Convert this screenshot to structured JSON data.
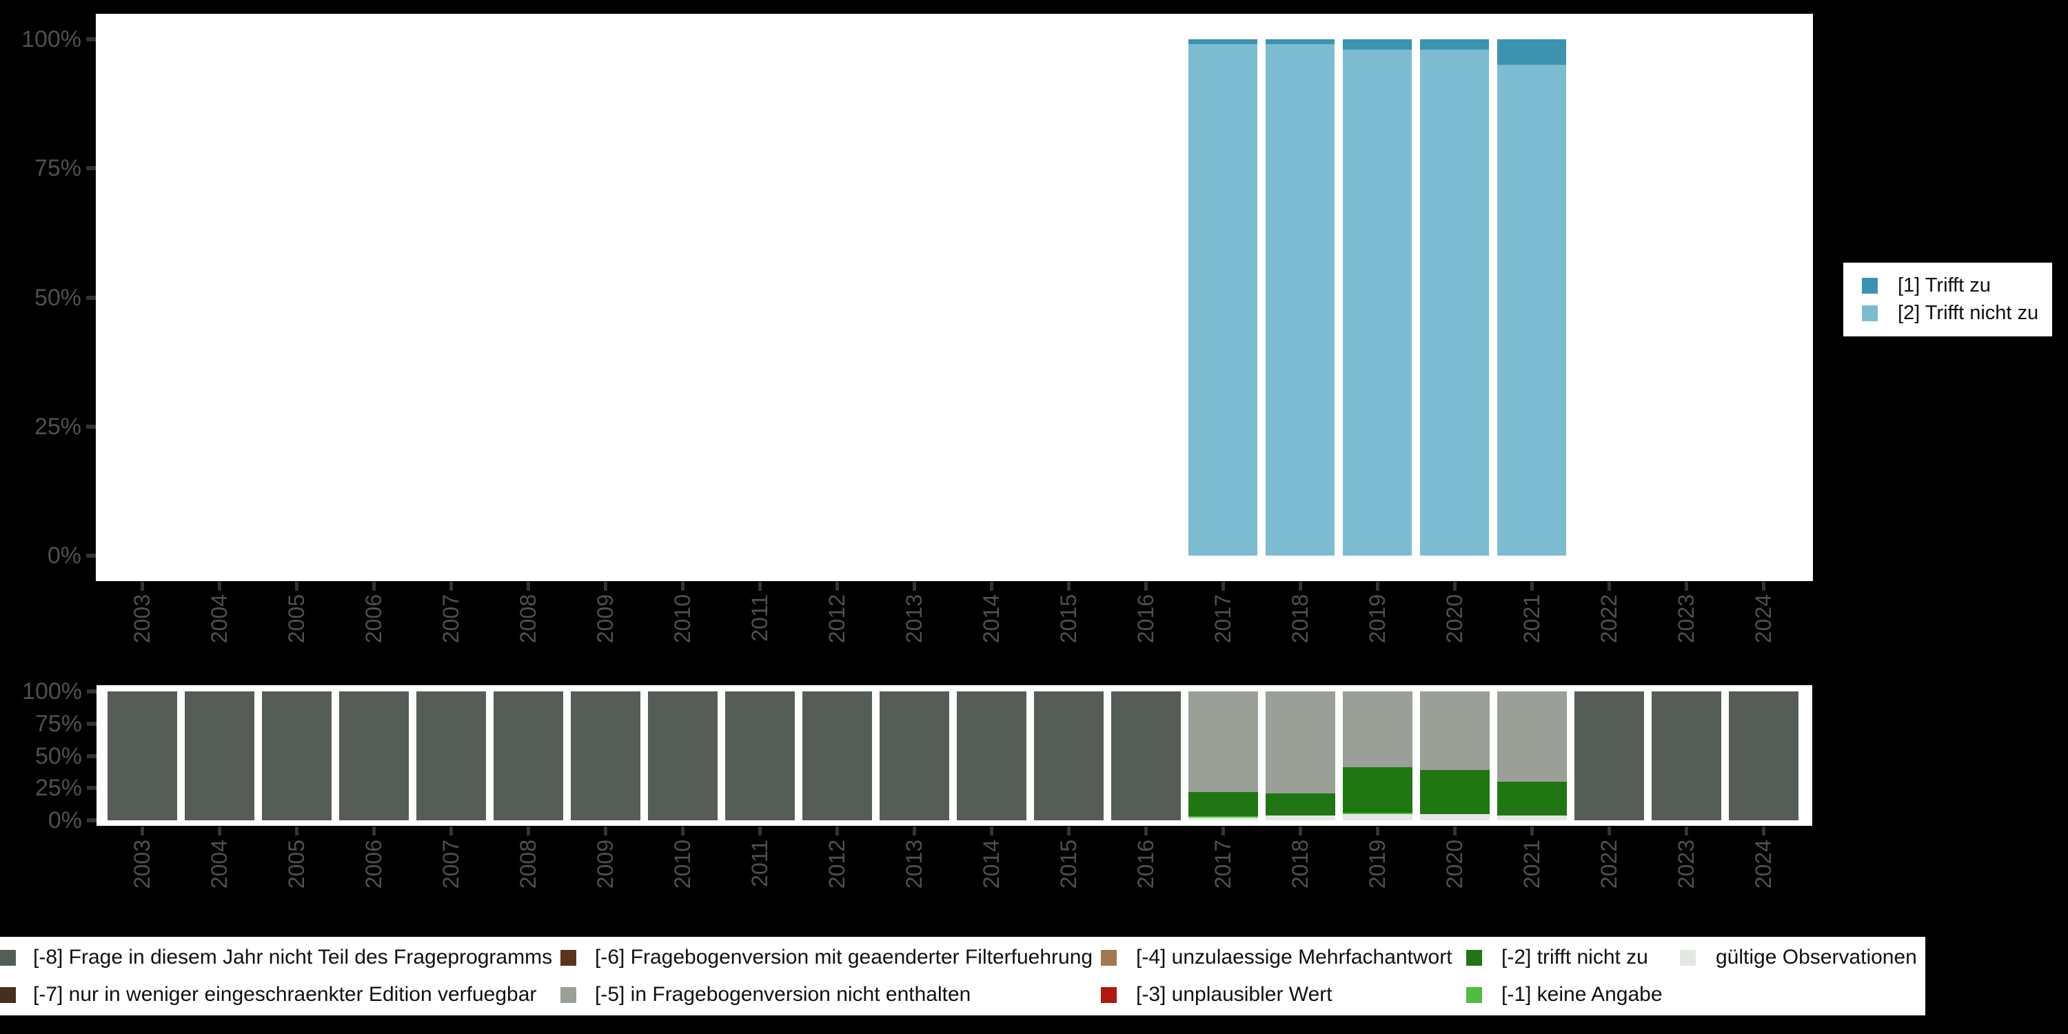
{
  "figure": {
    "background": "#000000",
    "panel_background": "#ffffff",
    "axis_text_color": "#4f4f4f",
    "tick_color": "#333333"
  },
  "top_legend": {
    "items": [
      {
        "label": "[1] Trifft zu",
        "color": "#3b93af"
      },
      {
        "label": "[2] Trifft nicht zu",
        "color": "#7dbcd0"
      }
    ]
  },
  "bottom_legend": {
    "rows": [
      [
        {
          "label": "[-8] Frage in diesem Jahr nicht Teil des Frageprogramms",
          "color": "#565d56"
        },
        {
          "label": "[-6] Fragebogenversion mit geaenderter Filterfuehrung",
          "color": "#5a351b"
        },
        {
          "label": "[-4] unzulaessige Mehrfachantwort",
          "color": "#a1794f"
        },
        {
          "label": "[-2] trifft nicht zu",
          "color": "#217614"
        },
        {
          "label": "gültige Observationen",
          "color": "#e4e8e2"
        }
      ],
      [
        {
          "label": "[-7] nur in weniger eingeschraenkter Edition verfuegbar",
          "color": "#452f1d"
        },
        {
          "label": "[-5] in Fragebogenversion nicht enthalten",
          "color": "#9a9f97"
        },
        {
          "label": "[-3] unplausibler Wert",
          "color": "#b2180f"
        },
        {
          "label": "[-1] keine Angabe",
          "color": "#52ba43"
        }
      ]
    ]
  },
  "chart_data": [
    {
      "id": "answers-by-year",
      "type": "bar",
      "stacked": true,
      "unit": "percent",
      "title": "",
      "xlabel": "",
      "ylabel": "",
      "ylim": [
        0,
        100
      ],
      "grid": false,
      "legend_position": "right",
      "y_ticks": [
        "100%",
        "75%",
        "50%",
        "25%",
        "0%"
      ],
      "categories": [
        "2003",
        "2004",
        "2005",
        "2006",
        "2007",
        "2008",
        "2009",
        "2010",
        "2011",
        "2012",
        "2013",
        "2014",
        "2015",
        "2016",
        "2017",
        "2018",
        "2019",
        "2020",
        "2021",
        "2022",
        "2023",
        "2024"
      ],
      "series": [
        {
          "name": "[1] Trifft zu",
          "color": "#3b93af",
          "values": [
            0,
            0,
            0,
            0,
            0,
            0,
            0,
            0,
            0,
            0,
            0,
            0,
            0,
            0,
            1,
            1,
            2,
            2,
            5,
            0,
            0,
            0
          ]
        },
        {
          "name": "[2] Trifft nicht zu",
          "color": "#7dbcd0",
          "values": [
            0,
            0,
            0,
            0,
            0,
            0,
            0,
            0,
            0,
            0,
            0,
            0,
            0,
            0,
            99,
            99,
            98,
            98,
            95,
            0,
            0,
            0
          ]
        }
      ]
    },
    {
      "id": "missings-by-year",
      "type": "bar",
      "stacked": true,
      "unit": "percent",
      "title": "",
      "xlabel": "",
      "ylabel": "",
      "ylim": [
        0,
        100
      ],
      "grid": false,
      "legend_position": "bottom",
      "y_ticks": [
        "100%",
        "75%",
        "50%",
        "25%",
        "0%"
      ],
      "categories": [
        "2003",
        "2004",
        "2005",
        "2006",
        "2007",
        "2008",
        "2009",
        "2010",
        "2011",
        "2012",
        "2013",
        "2014",
        "2015",
        "2016",
        "2017",
        "2018",
        "2019",
        "2020",
        "2021",
        "2022",
        "2023",
        "2024"
      ],
      "series": [
        {
          "name": "[-8] Frage in diesem Jahr nicht Teil des Frageprogramms",
          "color": "#565d56",
          "values": [
            100,
            100,
            100,
            100,
            100,
            100,
            100,
            100,
            100,
            100,
            100,
            100,
            100,
            100,
            0,
            0,
            0,
            0,
            0,
            100,
            100,
            100
          ]
        },
        {
          "name": "[-5] in Fragebogenversion nicht enthalten",
          "color": "#9a9f97",
          "values": [
            0,
            0,
            0,
            0,
            0,
            0,
            0,
            0,
            0,
            0,
            0,
            0,
            0,
            0,
            78,
            79,
            59,
            61,
            70,
            0,
            0,
            0
          ]
        },
        {
          "name": "[-2] trifft nicht zu",
          "color": "#217614",
          "values": [
            0,
            0,
            0,
            0,
            0,
            0,
            0,
            0,
            0,
            0,
            0,
            0,
            0,
            0,
            19,
            17,
            35,
            34,
            26,
            0,
            0,
            0
          ]
        },
        {
          "name": "[-1] keine Angabe",
          "color": "#52ba43",
          "values": [
            0,
            0,
            0,
            0,
            0,
            0,
            0,
            0,
            0,
            0,
            0,
            0,
            0,
            0,
            1,
            0,
            1,
            0,
            0,
            0,
            0,
            0
          ]
        },
        {
          "name": "gültige Observationen",
          "color": "#e4e8e2",
          "values": [
            0,
            0,
            0,
            0,
            0,
            0,
            0,
            0,
            0,
            0,
            0,
            0,
            0,
            0,
            2,
            4,
            5,
            5,
            4,
            0,
            0,
            0
          ]
        }
      ]
    }
  ]
}
